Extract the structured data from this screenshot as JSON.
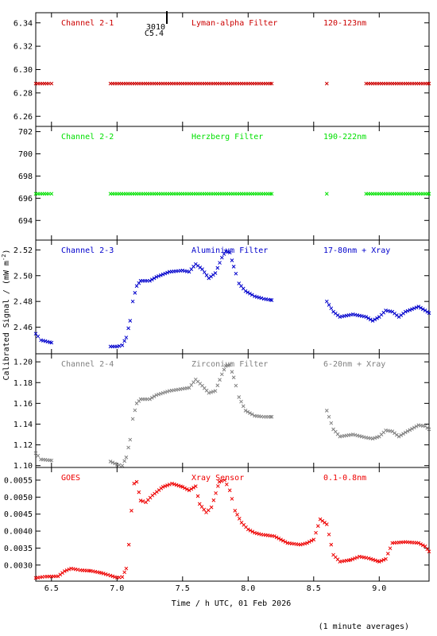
{
  "chart_data": {
    "type": "scatter",
    "marker": "x",
    "xlabel": "Time / h UTC, 01 Feb 2026",
    "ylabel_main": "Calibrated Signal / (mW m",
    "ylabel_sup": "-2",
    "ylabel_close": ")",
    "footnote": "(1 minute averages)",
    "xlim": [
      6.38,
      9.38
    ],
    "xticks": [
      6.5,
      7.0,
      7.5,
      8.0,
      8.5,
      9.0
    ],
    "xtick_labels": [
      "6.5",
      "7.0",
      "7.5",
      "8.0",
      "8.5",
      "9.0"
    ],
    "flare_marker": {
      "x": 7.38,
      "label_top": "3010",
      "label_bottom": "C5.4"
    },
    "panels": [
      {
        "name": "Channel 2-1",
        "filter": "Lyman-alpha Filter",
        "band": "120-123nm",
        "color": "#cc0000",
        "ylim": [
          6.252,
          6.348
        ],
        "yticks": [
          6.26,
          6.28,
          6.3,
          6.32,
          6.34
        ],
        "ytick_labels": [
          "6.26",
          "6.28",
          "6.30",
          "6.32",
          "6.34"
        ],
        "points": [
          [
            6.38,
            6.288
          ],
          [
            6.5,
            6.288
          ],
          [
            6.95,
            6.288
          ],
          [
            7.2,
            6.288
          ],
          [
            7.5,
            6.288
          ],
          [
            7.8,
            6.288
          ],
          [
            8.0,
            6.288
          ],
          [
            8.18,
            6.288
          ],
          [
            8.6,
            6.288
          ],
          [
            8.9,
            6.288
          ],
          [
            9.2,
            6.288
          ],
          [
            9.38,
            6.288
          ]
        ]
      },
      {
        "name": "Channel 2-2",
        "filter": "Herzberg Filter",
        "band": "190-222nm",
        "color": "#00e000",
        "ylim": [
          692.3,
          702.4
        ],
        "yticks": [
          694,
          696,
          698,
          700,
          702
        ],
        "ytick_labels": [
          "694",
          "696",
          "698",
          "700",
          "702"
        ],
        "points": [
          [
            6.38,
            696.4
          ],
          [
            6.5,
            696.4
          ],
          [
            6.95,
            696.4
          ],
          [
            7.2,
            696.4
          ],
          [
            7.5,
            696.4
          ],
          [
            7.8,
            696.4
          ],
          [
            8.0,
            696.4
          ],
          [
            8.18,
            696.4
          ],
          [
            8.6,
            696.4
          ],
          [
            8.9,
            696.4
          ],
          [
            9.2,
            696.4
          ],
          [
            9.38,
            696.4
          ]
        ]
      },
      {
        "name": "Channel 2-3",
        "filter": "Aluminium Filter",
        "band": "17-80nm + Xray",
        "color": "#0000cc",
        "ylim": [
          2.44,
          2.527
        ],
        "yticks": [
          2.46,
          2.48,
          2.5,
          2.52
        ],
        "ytick_labels": [
          "2.46",
          "2.48",
          "2.50",
          "2.52"
        ],
        "points": [
          [
            6.38,
            2.455
          ],
          [
            6.42,
            2.45
          ],
          [
            6.5,
            2.448
          ],
          [
            6.95,
            2.445
          ],
          [
            7.0,
            2.445
          ],
          [
            7.04,
            2.446
          ],
          [
            7.07,
            2.452
          ],
          [
            7.1,
            2.465
          ],
          [
            7.12,
            2.48
          ],
          [
            7.15,
            2.492
          ],
          [
            7.18,
            2.496
          ],
          [
            7.25,
            2.496
          ],
          [
            7.3,
            2.499
          ],
          [
            7.4,
            2.503
          ],
          [
            7.5,
            2.504
          ],
          [
            7.55,
            2.503
          ],
          [
            7.6,
            2.509
          ],
          [
            7.65,
            2.505
          ],
          [
            7.7,
            2.498
          ],
          [
            7.75,
            2.502
          ],
          [
            7.8,
            2.514
          ],
          [
            7.83,
            2.519
          ],
          [
            7.86,
            2.518
          ],
          [
            7.89,
            2.507
          ],
          [
            7.93,
            2.494
          ],
          [
            7.98,
            2.488
          ],
          [
            8.05,
            2.484
          ],
          [
            8.12,
            2.482
          ],
          [
            8.18,
            2.481
          ],
          [
            8.6,
            2.48
          ],
          [
            8.65,
            2.472
          ],
          [
            8.7,
            2.468
          ],
          [
            8.8,
            2.47
          ],
          [
            8.9,
            2.468
          ],
          [
            8.95,
            2.465
          ],
          [
            9.0,
            2.468
          ],
          [
            9.05,
            2.473
          ],
          [
            9.1,
            2.472
          ],
          [
            9.15,
            2.468
          ],
          [
            9.2,
            2.472
          ],
          [
            9.3,
            2.476
          ],
          [
            9.35,
            2.473
          ],
          [
            9.38,
            2.471
          ]
        ]
      },
      {
        "name": "Channel 2-4",
        "filter": "Zirconium Filter",
        "band": "6-20nm + Xray",
        "color": "#808080",
        "ylim": [
          1.099,
          1.207
        ],
        "yticks": [
          1.1,
          1.12,
          1.14,
          1.16,
          1.18,
          1.2
        ],
        "ytick_labels": [
          "1.10",
          "1.12",
          "1.14",
          "1.16",
          "1.18",
          "1.20"
        ],
        "points": [
          [
            6.38,
            1.112
          ],
          [
            6.42,
            1.106
          ],
          [
            6.5,
            1.105
          ],
          [
            6.95,
            1.104
          ],
          [
            7.0,
            1.101
          ],
          [
            7.04,
            1.1
          ],
          [
            7.07,
            1.108
          ],
          [
            7.1,
            1.125
          ],
          [
            7.12,
            1.145
          ],
          [
            7.15,
            1.16
          ],
          [
            7.18,
            1.164
          ],
          [
            7.25,
            1.164
          ],
          [
            7.3,
            1.168
          ],
          [
            7.4,
            1.172
          ],
          [
            7.5,
            1.174
          ],
          [
            7.55,
            1.175
          ],
          [
            7.6,
            1.183
          ],
          [
            7.65,
            1.177
          ],
          [
            7.7,
            1.17
          ],
          [
            7.75,
            1.172
          ],
          [
            7.8,
            1.188
          ],
          [
            7.83,
            1.196
          ],
          [
            7.86,
            1.197
          ],
          [
            7.89,
            1.185
          ],
          [
            7.93,
            1.166
          ],
          [
            7.98,
            1.153
          ],
          [
            8.05,
            1.148
          ],
          [
            8.12,
            1.147
          ],
          [
            8.18,
            1.147
          ],
          [
            8.6,
            1.153
          ],
          [
            8.65,
            1.135
          ],
          [
            8.7,
            1.128
          ],
          [
            8.8,
            1.13
          ],
          [
            8.9,
            1.127
          ],
          [
            8.95,
            1.126
          ],
          [
            9.0,
            1.128
          ],
          [
            9.05,
            1.134
          ],
          [
            9.1,
            1.133
          ],
          [
            9.15,
            1.128
          ],
          [
            9.2,
            1.132
          ],
          [
            9.3,
            1.139
          ],
          [
            9.35,
            1.138
          ],
          [
            9.38,
            1.135
          ]
        ]
      },
      {
        "name": "GOES",
        "filter": "Xray Sensor",
        "band": "0.1-0.8nm",
        "color": "#ee0000",
        "ylim": [
          0.00255,
          0.00585
        ],
        "yticks": [
          0.003,
          0.0035,
          0.004,
          0.0045,
          0.005,
          0.0055
        ],
        "ytick_labels": [
          "0.0030",
          "0.0035",
          "0.0040",
          "0.0045",
          "0.0050",
          "0.0055"
        ],
        "points": [
          [
            6.38,
            0.00262
          ],
          [
            6.45,
            0.00266
          ],
          [
            6.55,
            0.00267
          ],
          [
            6.6,
            0.00282
          ],
          [
            6.65,
            0.0029
          ],
          [
            6.72,
            0.00285
          ],
          [
            6.8,
            0.00283
          ],
          [
            6.88,
            0.00277
          ],
          [
            6.95,
            0.00269
          ],
          [
            7.0,
            0.00263
          ],
          [
            7.04,
            0.00265
          ],
          [
            7.07,
            0.0029
          ],
          [
            7.09,
            0.0036
          ],
          [
            7.11,
            0.0046
          ],
          [
            7.13,
            0.0054
          ],
          [
            7.15,
            0.00545
          ],
          [
            7.18,
            0.0049
          ],
          [
            7.22,
            0.00485
          ],
          [
            7.27,
            0.00505
          ],
          [
            7.35,
            0.0053
          ],
          [
            7.42,
            0.0054
          ],
          [
            7.5,
            0.0053
          ],
          [
            7.55,
            0.0052
          ],
          [
            7.6,
            0.00532
          ],
          [
            7.63,
            0.0048
          ],
          [
            7.68,
            0.00455
          ],
          [
            7.72,
            0.0047
          ],
          [
            7.78,
            0.00545
          ],
          [
            7.82,
            0.0055
          ],
          [
            7.86,
            0.0052
          ],
          [
            7.9,
            0.0046
          ],
          [
            7.95,
            0.00425
          ],
          [
            8.0,
            0.00405
          ],
          [
            8.05,
            0.00395
          ],
          [
            8.1,
            0.0039
          ],
          [
            8.2,
            0.00385
          ],
          [
            8.3,
            0.00365
          ],
          [
            8.4,
            0.0036
          ],
          [
            8.45,
            0.00365
          ],
          [
            8.5,
            0.00375
          ],
          [
            8.55,
            0.00435
          ],
          [
            8.6,
            0.0042
          ],
          [
            8.65,
            0.0033
          ],
          [
            8.7,
            0.0031
          ],
          [
            8.78,
            0.00315
          ],
          [
            8.85,
            0.00325
          ],
          [
            8.92,
            0.0032
          ],
          [
            9.0,
            0.0031
          ],
          [
            9.05,
            0.00318
          ],
          [
            9.1,
            0.00365
          ],
          [
            9.2,
            0.00368
          ],
          [
            9.3,
            0.00365
          ],
          [
            9.35,
            0.00355
          ],
          [
            9.38,
            0.0034
          ]
        ]
      }
    ]
  }
}
